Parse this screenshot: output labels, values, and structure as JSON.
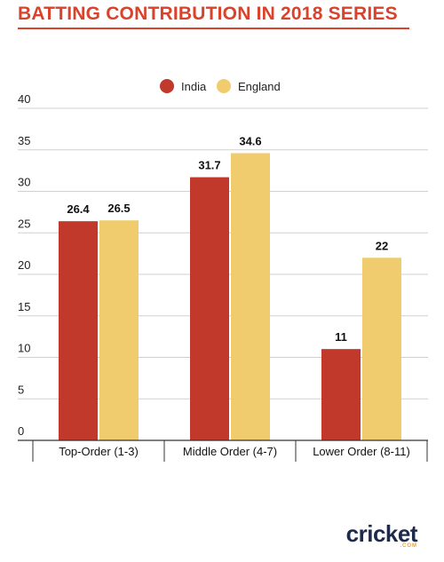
{
  "chart_data": {
    "type": "bar",
    "title": "BATTING CONTRIBUTION IN 2018 SERIES",
    "categories": [
      "Top-Order (1-3)",
      "Middle Order (4-7)",
      "Lower Order (8-11)"
    ],
    "series": [
      {
        "name": "India",
        "values": [
          26.4,
          31.7,
          11
        ],
        "labels": [
          "26.4",
          "31.7",
          "11"
        ],
        "color": "#c0392b"
      },
      {
        "name": "England",
        "values": [
          26.5,
          34.6,
          22
        ],
        "labels": [
          "26.5",
          "34.6",
          "22"
        ],
        "color": "#f0cc6e"
      }
    ],
    "yticks": [
      "0",
      "5",
      "10",
      "15",
      "20",
      "25",
      "30",
      "35",
      "40"
    ],
    "ylim": [
      0,
      40
    ],
    "xlabel": "",
    "ylabel": "",
    "grid": true,
    "legend": "top-center"
  },
  "branding": {
    "word": "cricket",
    "suffix": ".COM",
    "colors": {
      "word": "#1d2a4a",
      "accent": "#e8a33a"
    }
  },
  "colors": {
    "title": "#d9432c",
    "grid": "#d0d0d0",
    "axis": "#333333"
  }
}
